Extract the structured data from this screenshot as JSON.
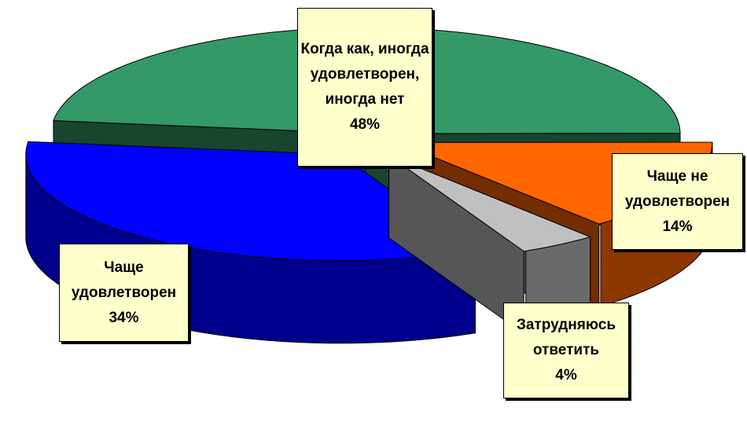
{
  "chart_data": {
    "type": "pie3d",
    "categories": [
      "Когда как, иногда удовлетворен, иногда нет",
      "Чаще не удовлетворен",
      "Затрудняюсь ответить",
      "Чаще удовлетворен"
    ],
    "values": [
      48,
      14,
      4,
      34
    ],
    "value_labels": [
      "48%",
      "14%",
      "4%",
      "34%"
    ],
    "colors": [
      "#339966",
      "#ff6600",
      "#c0c0c0",
      "#0000ff"
    ]
  }
}
